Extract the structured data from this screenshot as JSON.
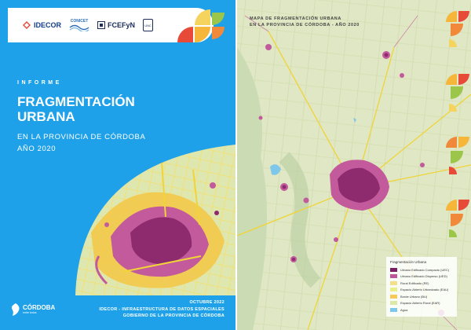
{
  "cover": {
    "logos": {
      "idecor": "IDECOR",
      "conicet": "CONICET",
      "fcefyn": "FCEFyN",
      "unc": "UNC"
    },
    "report_label": "INFORME",
    "title_line1": "FRAGMENTACIÓN",
    "title_line2": "URBANA",
    "subtitle_line1": "EN LA PROVINCIA DE CÓRDOBA",
    "subtitle_line2": "AÑO 2020",
    "footer": {
      "date": "OCTUBRE 2022",
      "org": "IDECOR - INFRAESTRUCTURA DE DATOS ESPACIALES",
      "gov": "GOBIERNO DE LA PROVINCIA DE CÓRDOBA"
    },
    "cordoba_logo": {
      "name": "CÓRDOBA",
      "tagline": "entre todos"
    },
    "colors": {
      "background": "#1ea1e8",
      "urban_compact": "#8e2a6e",
      "urban_disperse": "#c25a9c",
      "rural": "#f0d438",
      "open_space": "#f5c744"
    }
  },
  "map_page": {
    "title_line1": "MAPA DE FRAGMENTACIÓN URBANA",
    "title_line2": "EN LA PROVINCIA DE CÓRDOBA - AÑO 2020",
    "legend": {
      "title": "Fragmentación Urbana",
      "items": [
        {
          "label": "Urbano Edificado Compacto (UEC)",
          "color": "#7a1f63"
        },
        {
          "label": "Urbano Edificado Disperso (UED)",
          "color": "#c0569a"
        },
        {
          "label": "Rural Edificado (RE)",
          "color": "#f2e08a"
        },
        {
          "label": "Espacio Abierto Urbanizado (EAU)",
          "color": "#e8f08c"
        },
        {
          "label": "Borde Urbano (BU)",
          "color": "#f7c95b"
        },
        {
          "label": "Espacio Abierto Rural (EAR)",
          "color": "#dde7a6"
        },
        {
          "label": "Agua",
          "color": "#7fc7ea"
        }
      ]
    }
  }
}
